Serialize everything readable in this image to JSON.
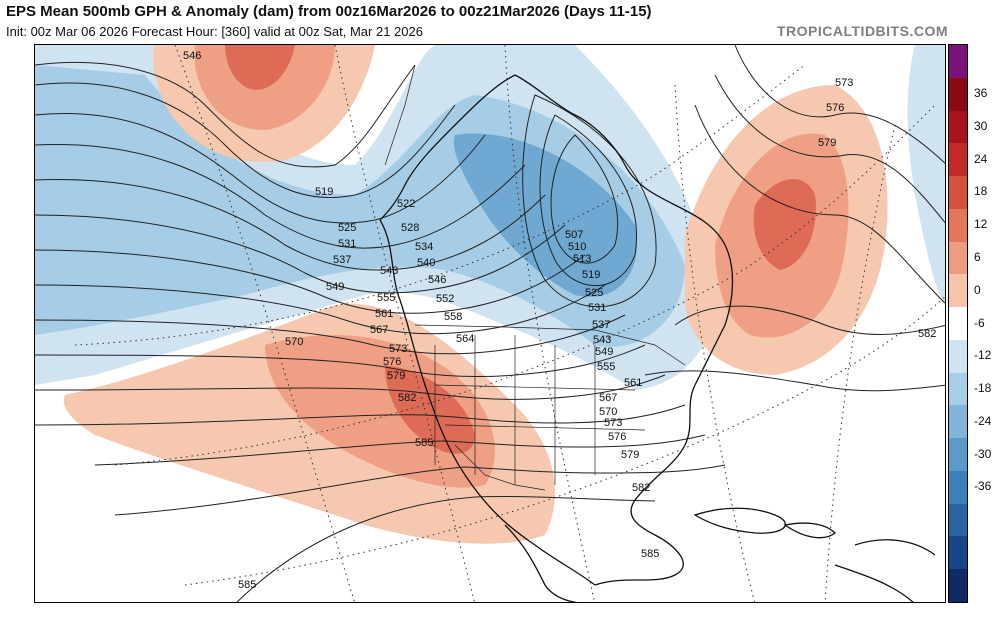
{
  "header": {
    "title": "EPS Mean 500mb GPH & Anomaly (dam) from 00z16Mar2026 to 00z21Mar2026 (Days 11-15)",
    "subtitle": "Init: 00z Mar 06 2026   Forecast Hour: [360]   valid at 00z Sat, Mar 21 2026",
    "brand": "TROPICALTIDBITS.COM"
  },
  "colorbar": {
    "ticks": [
      "36",
      "30",
      "24",
      "18",
      "12",
      "6",
      "0",
      "-6",
      "-12",
      "-18",
      "-24",
      "-30",
      "-36"
    ],
    "colors": [
      "#7a127a",
      "#8b0a14",
      "#a8141e",
      "#c42a2a",
      "#d5513e",
      "#e2775c",
      "#ee9c80",
      "#f6c4ab",
      "#ffffff",
      "#cfe3f1",
      "#a8cde6",
      "#80b5d9",
      "#5a9bcb",
      "#3d7fb9",
      "#2a62a2",
      "#1b4587",
      "#0f2a66"
    ]
  },
  "contours": {
    "labels": [
      "546",
      "519",
      "522",
      "525",
      "528",
      "531",
      "534",
      "537",
      "540",
      "543",
      "546",
      "549",
      "552",
      "555",
      "558",
      "561",
      "564",
      "567",
      "570",
      "573",
      "576",
      "579",
      "582",
      "585",
      "507",
      "510",
      "513",
      "519",
      "525",
      "531",
      "537",
      "543",
      "549",
      "555",
      "561",
      "567",
      "570",
      "573",
      "576",
      "579",
      "582",
      "585",
      "573",
      "576",
      "579",
      "582",
      "585"
    ]
  },
  "map": {
    "colors": {
      "warm_light": "#f7c8b0",
      "warm_mid": "#ef9f83",
      "warm_dark": "#de6b56",
      "cool_light": "#cfe3f1",
      "cool_mid": "#a6cde5",
      "cool_dark": "#6fa9d2"
    }
  }
}
